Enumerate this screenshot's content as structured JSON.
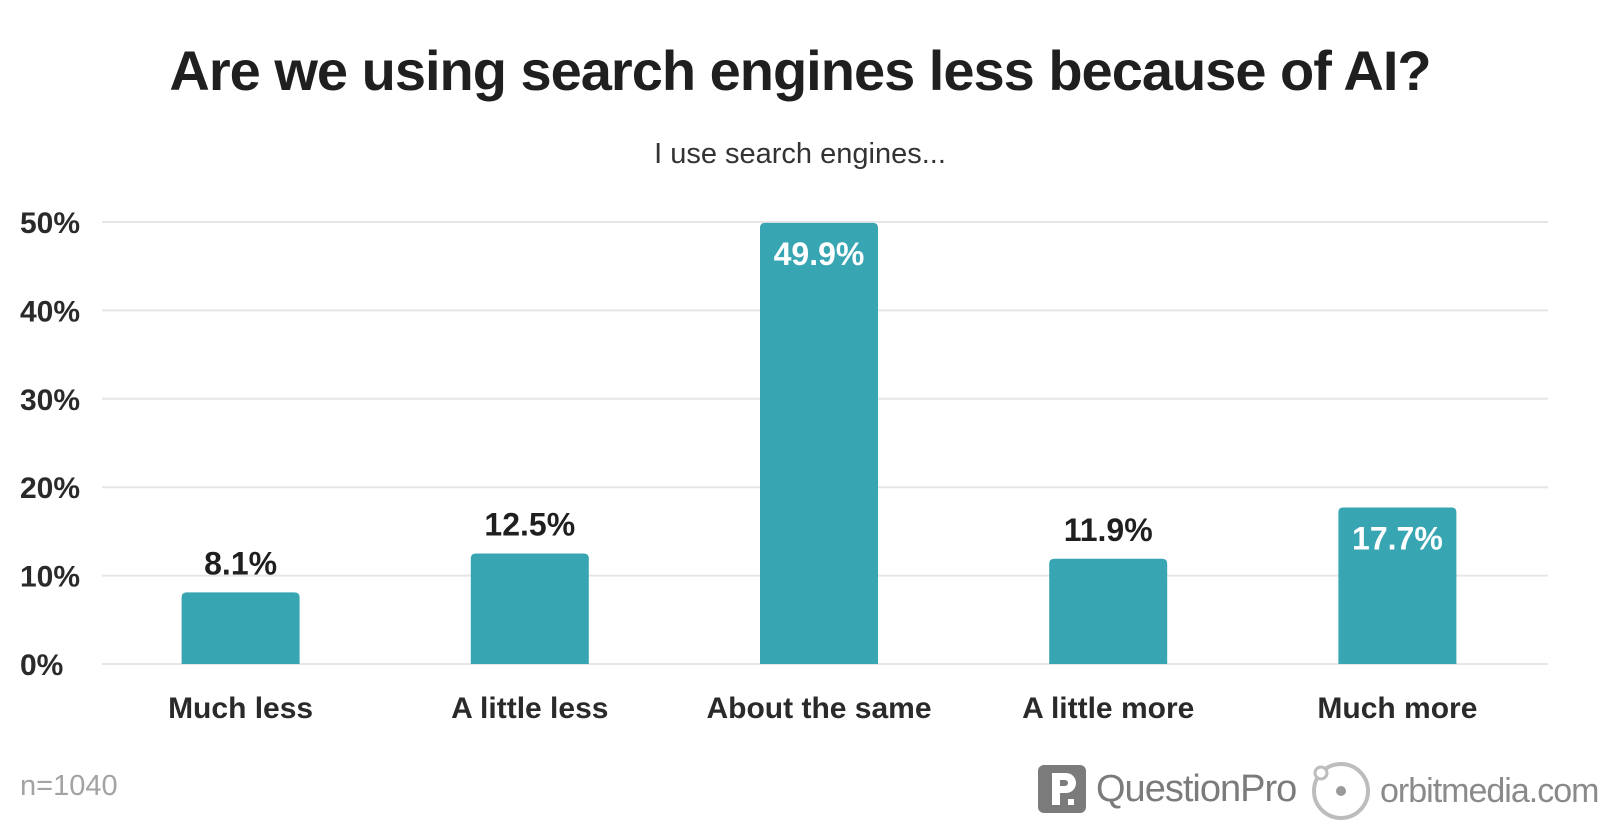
{
  "chart_data": {
    "type": "bar",
    "title": "Are we using search engines less because of AI?",
    "subtitle": "I use search engines...",
    "categories": [
      "Much less",
      "A little less",
      "About the same",
      "A little more",
      "Much more"
    ],
    "values": [
      8.1,
      12.5,
      49.9,
      11.9,
      17.7
    ],
    "data_labels": [
      "8.1%",
      "12.5%",
      "49.9%",
      "11.9%",
      "17.7%"
    ],
    "y_ticks": [
      "0%",
      "10%",
      "20%",
      "30%",
      "40%",
      "50%"
    ],
    "y_tick_values": [
      0,
      10,
      20,
      30,
      40,
      50
    ],
    "ylim": [
      0,
      50
    ],
    "xlabel": "",
    "ylabel": "",
    "grid": true,
    "legend": "none",
    "bar_color": "#38a5b3",
    "gridline_color": "#e6e6e6"
  },
  "footer": {
    "sample_size": "n=1040",
    "logo_questionpro": "QuestionPro",
    "logo_orbitmedia": "orbitmedia.com"
  }
}
